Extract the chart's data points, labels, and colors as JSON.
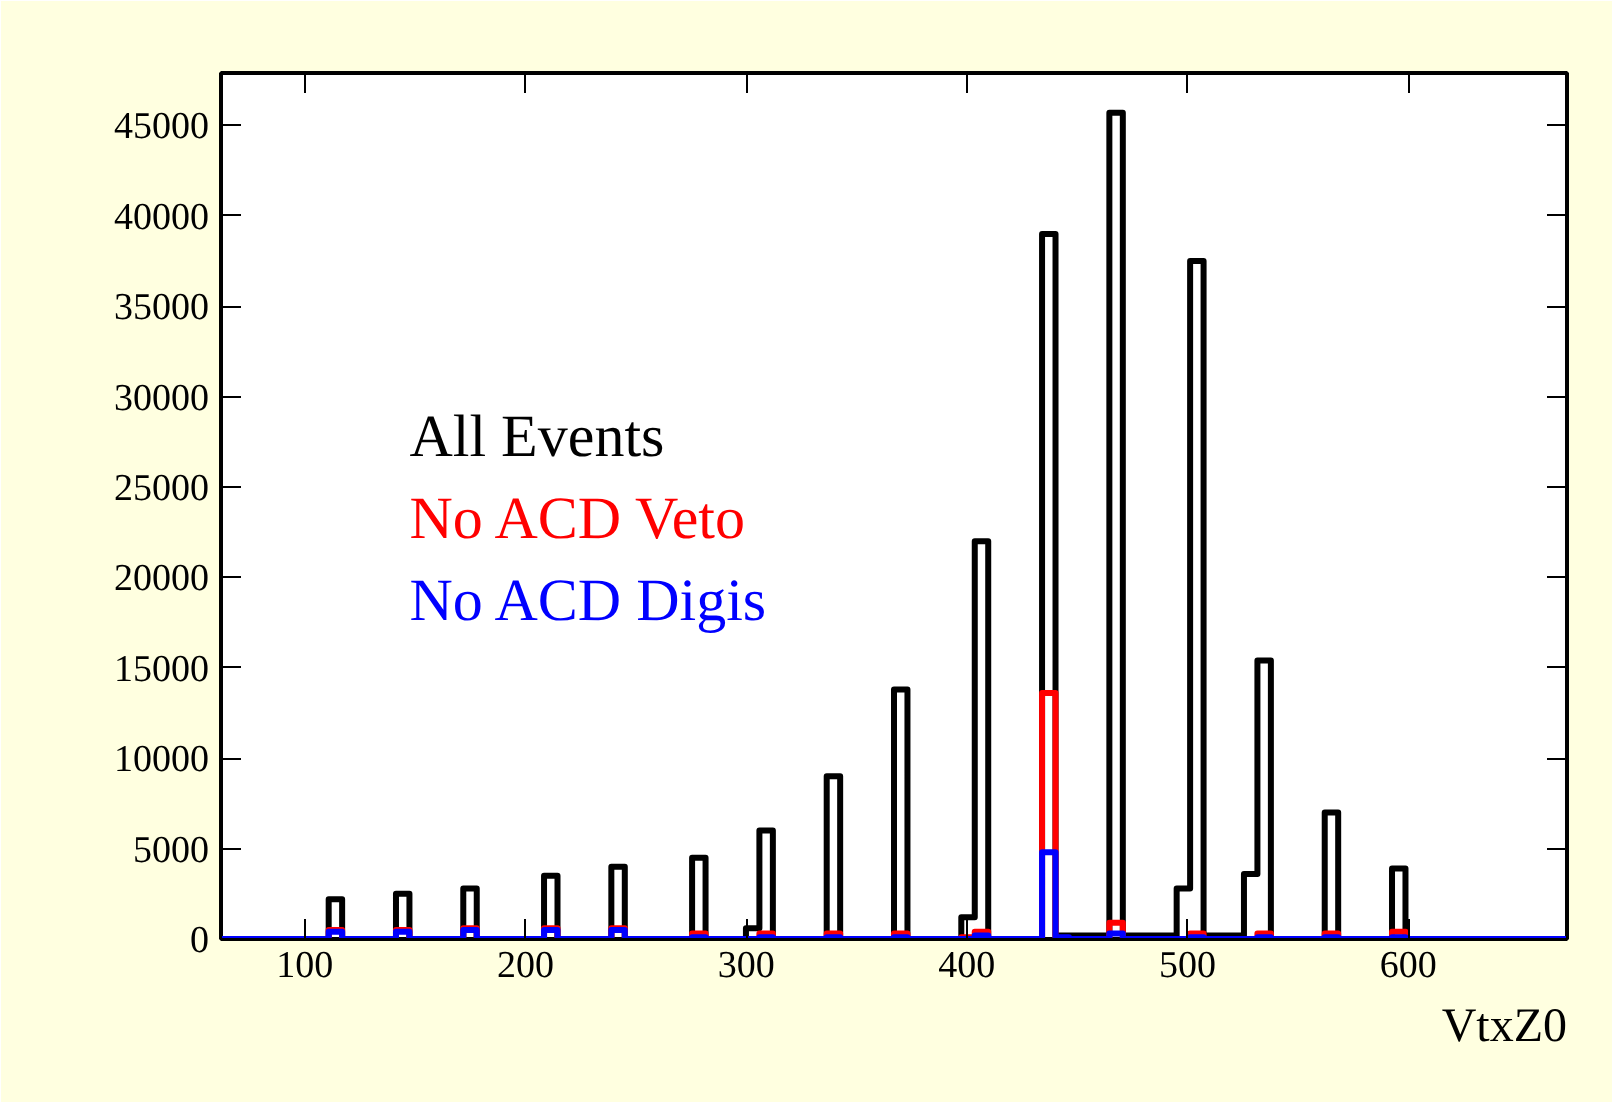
{
  "chart_data": {
    "type": "histogram",
    "xlabel": "VtxZ0",
    "xlim": [
      62,
      672
    ],
    "ylim": [
      0,
      47900
    ],
    "xticks": [
      100,
      200,
      300,
      400,
      500,
      600
    ],
    "yticks": [
      0,
      5000,
      10000,
      15000,
      20000,
      25000,
      30000,
      35000,
      40000,
      45000
    ],
    "grid": false,
    "legend": "left",
    "line_style": "solid",
    "bins": [
      62,
      68.1,
      74.2,
      80.3,
      86.4,
      92.5,
      98.6,
      104.7,
      110.8,
      116.9,
      123,
      129.1,
      135.2,
      141.3,
      147.4,
      153.5,
      159.6,
      165.7,
      171.8,
      177.9,
      184,
      190.1,
      196.2,
      202.3,
      208.4,
      214.5,
      220.6,
      226.7,
      232.8,
      238.9,
      245,
      251.1,
      257.2,
      263.3,
      269.4,
      275.5,
      281.6,
      287.7,
      293.8,
      299.9,
      306,
      312.1,
      318.2,
      324.3,
      330.4,
      336.5,
      342.6,
      348.7,
      354.8,
      360.9,
      367,
      373.1,
      379.2,
      385.3,
      391.4,
      397.5,
      403.6,
      409.7,
      415.8,
      421.9,
      428,
      434.1,
      440.2,
      446.3,
      452.4,
      458.5,
      464.6,
      470.7,
      476.8,
      482.9,
      489,
      495.1,
      501.2,
      507.3,
      513.4,
      519.5,
      525.6,
      531.7,
      537.8,
      543.9,
      550,
      556.1,
      562.2,
      568.3,
      574.4,
      580.5,
      586.6,
      592.7,
      598.8,
      604.9,
      611,
      617.1,
      623.2,
      629.3,
      635.4,
      641.5,
      647.6,
      653.7,
      659.8,
      665.9,
      672
    ],
    "series": [
      {
        "name": "All Events",
        "color": "#000000",
        "values": [
          0,
          0,
          0,
          0,
          0,
          0,
          0,
          0,
          2200,
          0,
          0,
          0,
          0,
          2500,
          0,
          0,
          0,
          0,
          2800,
          0,
          0,
          0,
          0,
          0,
          3500,
          0,
          0,
          0,
          0,
          4000,
          0,
          0,
          0,
          0,
          0,
          4500,
          0,
          0,
          0,
          600,
          6000,
          0,
          0,
          0,
          0,
          9000,
          0,
          0,
          0,
          0,
          13800,
          0,
          0,
          0,
          0,
          1200,
          22000,
          0,
          0,
          0,
          0,
          39000,
          200,
          200,
          200,
          200,
          45700,
          200,
          200,
          200,
          200,
          2800,
          37500,
          200,
          200,
          200,
          3600,
          15400,
          0,
          0,
          0,
          0,
          7000,
          0,
          0,
          0,
          0,
          3900,
          0,
          0,
          0,
          0,
          0,
          0,
          0,
          0,
          0,
          0,
          0,
          0
        ]
      },
      {
        "name": "No ACD Veto",
        "color": "#ff0000",
        "values": [
          0,
          0,
          0,
          0,
          0,
          0,
          0,
          0,
          500,
          0,
          0,
          0,
          0,
          500,
          0,
          0,
          0,
          0,
          600,
          0,
          0,
          0,
          0,
          0,
          600,
          0,
          0,
          0,
          0,
          600,
          0,
          0,
          0,
          0,
          0,
          300,
          0,
          0,
          0,
          0,
          300,
          0,
          0,
          0,
          0,
          300,
          0,
          0,
          0,
          0,
          300,
          0,
          0,
          0,
          0,
          100,
          400,
          0,
          0,
          0,
          0,
          13600,
          0,
          0,
          0,
          0,
          900,
          0,
          0,
          0,
          0,
          0,
          300,
          0,
          0,
          0,
          0,
          300,
          0,
          0,
          0,
          0,
          300,
          0,
          0,
          0,
          0,
          400,
          0,
          0,
          0,
          0,
          0,
          0,
          0,
          0,
          0,
          0,
          0,
          0
        ]
      },
      {
        "name": "No ACD Digis",
        "color": "#0000ff",
        "values": [
          0,
          0,
          0,
          0,
          0,
          0,
          0,
          0,
          400,
          0,
          0,
          0,
          0,
          400,
          0,
          0,
          0,
          0,
          500,
          0,
          0,
          0,
          0,
          0,
          500,
          0,
          0,
          0,
          0,
          500,
          0,
          0,
          0,
          0,
          0,
          100,
          0,
          0,
          0,
          0,
          100,
          0,
          0,
          0,
          0,
          100,
          0,
          0,
          0,
          0,
          100,
          0,
          0,
          0,
          0,
          0,
          200,
          0,
          0,
          0,
          0,
          4800,
          100,
          0,
          0,
          0,
          300,
          0,
          0,
          0,
          0,
          0,
          100,
          0,
          0,
          0,
          0,
          100,
          0,
          0,
          0,
          0,
          100,
          0,
          0,
          0,
          0,
          100,
          0,
          0,
          0,
          0,
          0,
          0,
          0,
          0,
          0,
          0,
          0,
          0
        ]
      }
    ]
  }
}
